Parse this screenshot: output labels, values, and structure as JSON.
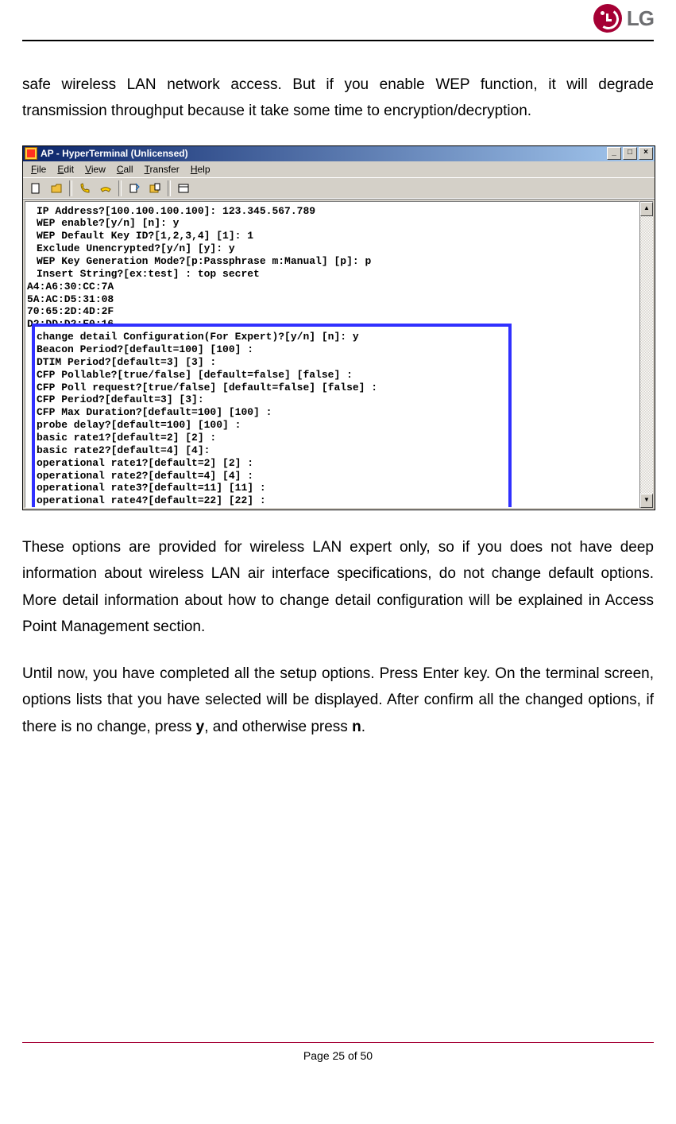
{
  "logo_text": "LG",
  "paragraphs": {
    "p1": "safe wireless LAN network access. But if you enable WEP function, it will degrade transmission throughput because it take some time to encryption/decryption.",
    "p2": "These options are provided for wireless LAN expert only, so if you does not have deep information about wireless LAN air interface specifications, do not change default options. More detail information about how to change detail configuration will be explained in Access Point Management section.",
    "p3_part1": "Until now, you have completed all the setup options. Press Enter key. On the terminal screen, options lists that you have selected will be displayed. After confirm all the changed options, if there is no change, press ",
    "p3_bold1": "y",
    "p3_mid": ", and otherwise press ",
    "p3_bold2": "n",
    "p3_end": "."
  },
  "footer": "Page 25 of 50",
  "window": {
    "title": "AP - HyperTerminal (Unlicensed)",
    "menus": [
      "File",
      "Edit",
      "View",
      "Call",
      "Transfer",
      "Help"
    ],
    "min_btn": "_",
    "max_btn": "□",
    "close_btn": "×",
    "scroll_up": "▲",
    "scroll_down": "▼"
  },
  "terminal": {
    "upper": [
      "IP Address?[100.100.100.100]: 123.345.567.789",
      "WEP enable?[y/n] [n]: y",
      "WEP Default Key ID?[1,2,3,4] [1]: 1",
      "Exclude Unencrypted?[y/n] [y]: y",
      "WEP Key Generation Mode?[p:Passphrase m:Manual] [p]: p",
      "Insert String?[ex:test] : top secret"
    ],
    "mac_lines": [
      "A4:A6:30:CC:7A",
      "5A:AC:D5:31:08",
      "70:65:2D:4D:2F",
      "D2:DD:D2:E0:16"
    ],
    "expert": [
      "change detail Configuration(For Expert)?[y/n] [n]: y",
      "Beacon Period?[default=100] [100] :",
      "DTIM Period?[default=3] [3] :",
      "CFP Pollable?[true/false] [default=false] [false] :",
      "CFP Poll request?[true/false] [default=false] [false] :",
      "CFP Period?[default=3] [3]:",
      "CFP Max Duration?[default=100] [100] :",
      "probe delay?[default=100] [100] :",
      "basic rate1?[default=2] [2] :",
      "basic rate2?[default=4] [4]:",
      "operational rate1?[default=2] [2] :",
      "operational rate2?[default=4] [4] :",
      "operational rate3?[default=11] [11] :",
      "operational rate4?[default=22] [22] :"
    ]
  },
  "colors": {
    "lg_red": "#a50034",
    "lg_grey": "#6d6e71",
    "win_titlebar_start": "#0a246a",
    "win_titlebar_end": "#a6caf0",
    "win_face": "#d4d0c8",
    "highlight_blue": "#3030ff"
  },
  "toolbar_icons": [
    "new",
    "open",
    "sep",
    "call",
    "hangup",
    "sep",
    "send",
    "receive",
    "sep",
    "properties"
  ]
}
